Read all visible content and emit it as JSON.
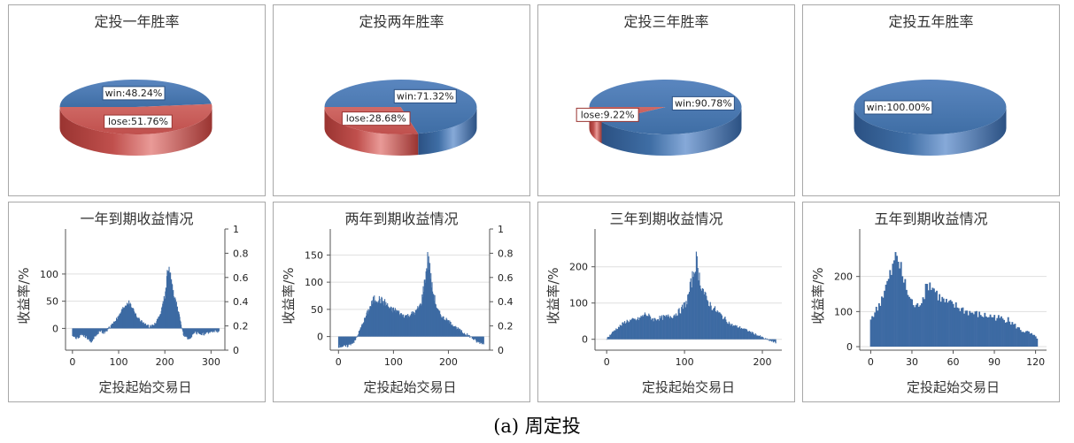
{
  "caption": "(a)  周定投",
  "colors": {
    "win": "#3f6ea5",
    "win_light": "#86a9d8",
    "win_dark": "#2b5183",
    "lose": "#c0504d",
    "lose_light": "#e99a97",
    "lose_dark": "#9a3431",
    "bar": "#3d6aa3",
    "grid": "#dfdfdf",
    "text": "#333333"
  },
  "chart_data": [
    {
      "type": "pie",
      "title": "定投一年胜率",
      "slices": [
        {
          "label": "win:48.24%",
          "value": 48.24,
          "key": "win"
        },
        {
          "label": "lose:51.76%",
          "value": 51.76,
          "key": "lose"
        }
      ]
    },
    {
      "type": "pie",
      "title": "定投两年胜率",
      "slices": [
        {
          "label": "win:71.32%",
          "value": 71.32,
          "key": "win"
        },
        {
          "label": "lose:28.68%",
          "value": 28.68,
          "key": "lose"
        }
      ]
    },
    {
      "type": "pie",
      "title": "定投三年胜率",
      "slices": [
        {
          "label": "win:90.78%",
          "value": 90.78,
          "key": "win"
        },
        {
          "label": "lose:9.22%",
          "value": 9.22,
          "key": "lose"
        }
      ]
    },
    {
      "type": "pie",
      "title": "定投五年胜率",
      "slices": [
        {
          "label": "win:100.00%",
          "value": 100.0,
          "key": "win"
        }
      ]
    },
    {
      "type": "bar",
      "title": "一年到期收益情况",
      "xlabel": "定投起始交易日",
      "ylabel": "收益率/%",
      "xlim": [
        -15,
        330
      ],
      "ylim": [
        -40,
        160
      ],
      "xticks": [
        0,
        100,
        200,
        300
      ],
      "yticks": [
        0,
        50,
        100
      ],
      "y2ticks": [
        "0",
        "0.2",
        "0.4",
        "0.6",
        "0.8",
        "1"
      ],
      "n": 318,
      "profile": [
        [
          0,
          -12
        ],
        [
          10,
          -18
        ],
        [
          20,
          -10
        ],
        [
          30,
          -16
        ],
        [
          40,
          -25
        ],
        [
          50,
          -12
        ],
        [
          60,
          -5
        ],
        [
          70,
          -8
        ],
        [
          80,
          2
        ],
        [
          90,
          12
        ],
        [
          100,
          22
        ],
        [
          110,
          38
        ],
        [
          120,
          48
        ],
        [
          130,
          38
        ],
        [
          140,
          20
        ],
        [
          150,
          12
        ],
        [
          160,
          5
        ],
        [
          170,
          3
        ],
        [
          180,
          10
        ],
        [
          190,
          25
        ],
        [
          200,
          60
        ],
        [
          208,
          118
        ],
        [
          215,
          78
        ],
        [
          225,
          45
        ],
        [
          232,
          20
        ],
        [
          240,
          -12
        ],
        [
          250,
          -20
        ],
        [
          265,
          -8
        ],
        [
          285,
          -10
        ],
        [
          300,
          -6
        ],
        [
          317,
          -5
        ]
      ]
    },
    {
      "type": "bar",
      "title": "两年到期收益情况",
      "xlabel": "定投起始交易日",
      "ylabel": "收益率/%",
      "xlim": [
        -15,
        275
      ],
      "ylim": [
        -25,
        175
      ],
      "xticks": [
        0,
        100,
        200
      ],
      "yticks": [
        0,
        50,
        100,
        150
      ],
      "y2ticks": [
        "0",
        "0.2",
        "0.4",
        "0.6",
        "0.8",
        "1"
      ],
      "n": 265,
      "profile": [
        [
          0,
          -18
        ],
        [
          15,
          -18
        ],
        [
          30,
          -8
        ],
        [
          40,
          15
        ],
        [
          55,
          50
        ],
        [
          65,
          70
        ],
        [
          75,
          68
        ],
        [
          85,
          62
        ],
        [
          95,
          50
        ],
        [
          105,
          48
        ],
        [
          115,
          40
        ],
        [
          125,
          38
        ],
        [
          140,
          45
        ],
        [
          150,
          60
        ],
        [
          158,
          110
        ],
        [
          163,
          150
        ],
        [
          170,
          90
        ],
        [
          180,
          48
        ],
        [
          190,
          35
        ],
        [
          200,
          28
        ],
        [
          210,
          20
        ],
        [
          225,
          8
        ],
        [
          240,
          0
        ],
        [
          252,
          -10
        ],
        [
          264,
          -12
        ]
      ]
    },
    {
      "type": "bar",
      "title": "三年到期收益情况",
      "xlabel": "定投起始交易日",
      "ylabel": "收益率/%",
      "xlim": [
        -15,
        225
      ],
      "ylim": [
        -30,
        270
      ],
      "xticks": [
        0,
        100,
        200
      ],
      "yticks": [
        0,
        100,
        200
      ],
      "n": 218,
      "profile": [
        [
          0,
          2
        ],
        [
          10,
          25
        ],
        [
          25,
          50
        ],
        [
          40,
          55
        ],
        [
          50,
          70
        ],
        [
          60,
          55
        ],
        [
          72,
          60
        ],
        [
          85,
          65
        ],
        [
          95,
          80
        ],
        [
          103,
          105
        ],
        [
          110,
          170
        ],
        [
          115,
          220
        ],
        [
          120,
          160
        ],
        [
          128,
          110
        ],
        [
          135,
          90
        ],
        [
          145,
          70
        ],
        [
          160,
          40
        ],
        [
          175,
          30
        ],
        [
          190,
          15
        ],
        [
          205,
          0
        ],
        [
          217,
          -10
        ]
      ]
    },
    {
      "type": "bar",
      "title": "五年到期收益情况",
      "xlabel": "定投起始交易日",
      "ylabel": "收益率/%",
      "xlim": [
        -8,
        128
      ],
      "ylim": [
        -10,
        300
      ],
      "xticks": [
        0,
        30,
        60,
        90,
        120
      ],
      "yticks": [
        0,
        100,
        200
      ],
      "n": 122,
      "profile": [
        [
          0,
          80
        ],
        [
          5,
          110
        ],
        [
          10,
          160
        ],
        [
          15,
          210
        ],
        [
          19,
          265
        ],
        [
          23,
          200
        ],
        [
          28,
          140
        ],
        [
          33,
          110
        ],
        [
          38,
          140
        ],
        [
          42,
          180
        ],
        [
          45,
          170
        ],
        [
          50,
          140
        ],
        [
          55,
          125
        ],
        [
          62,
          115
        ],
        [
          70,
          100
        ],
        [
          80,
          90
        ],
        [
          90,
          85
        ],
        [
          100,
          75
        ],
        [
          110,
          45
        ],
        [
          115,
          40
        ],
        [
          121,
          25
        ]
      ]
    }
  ]
}
